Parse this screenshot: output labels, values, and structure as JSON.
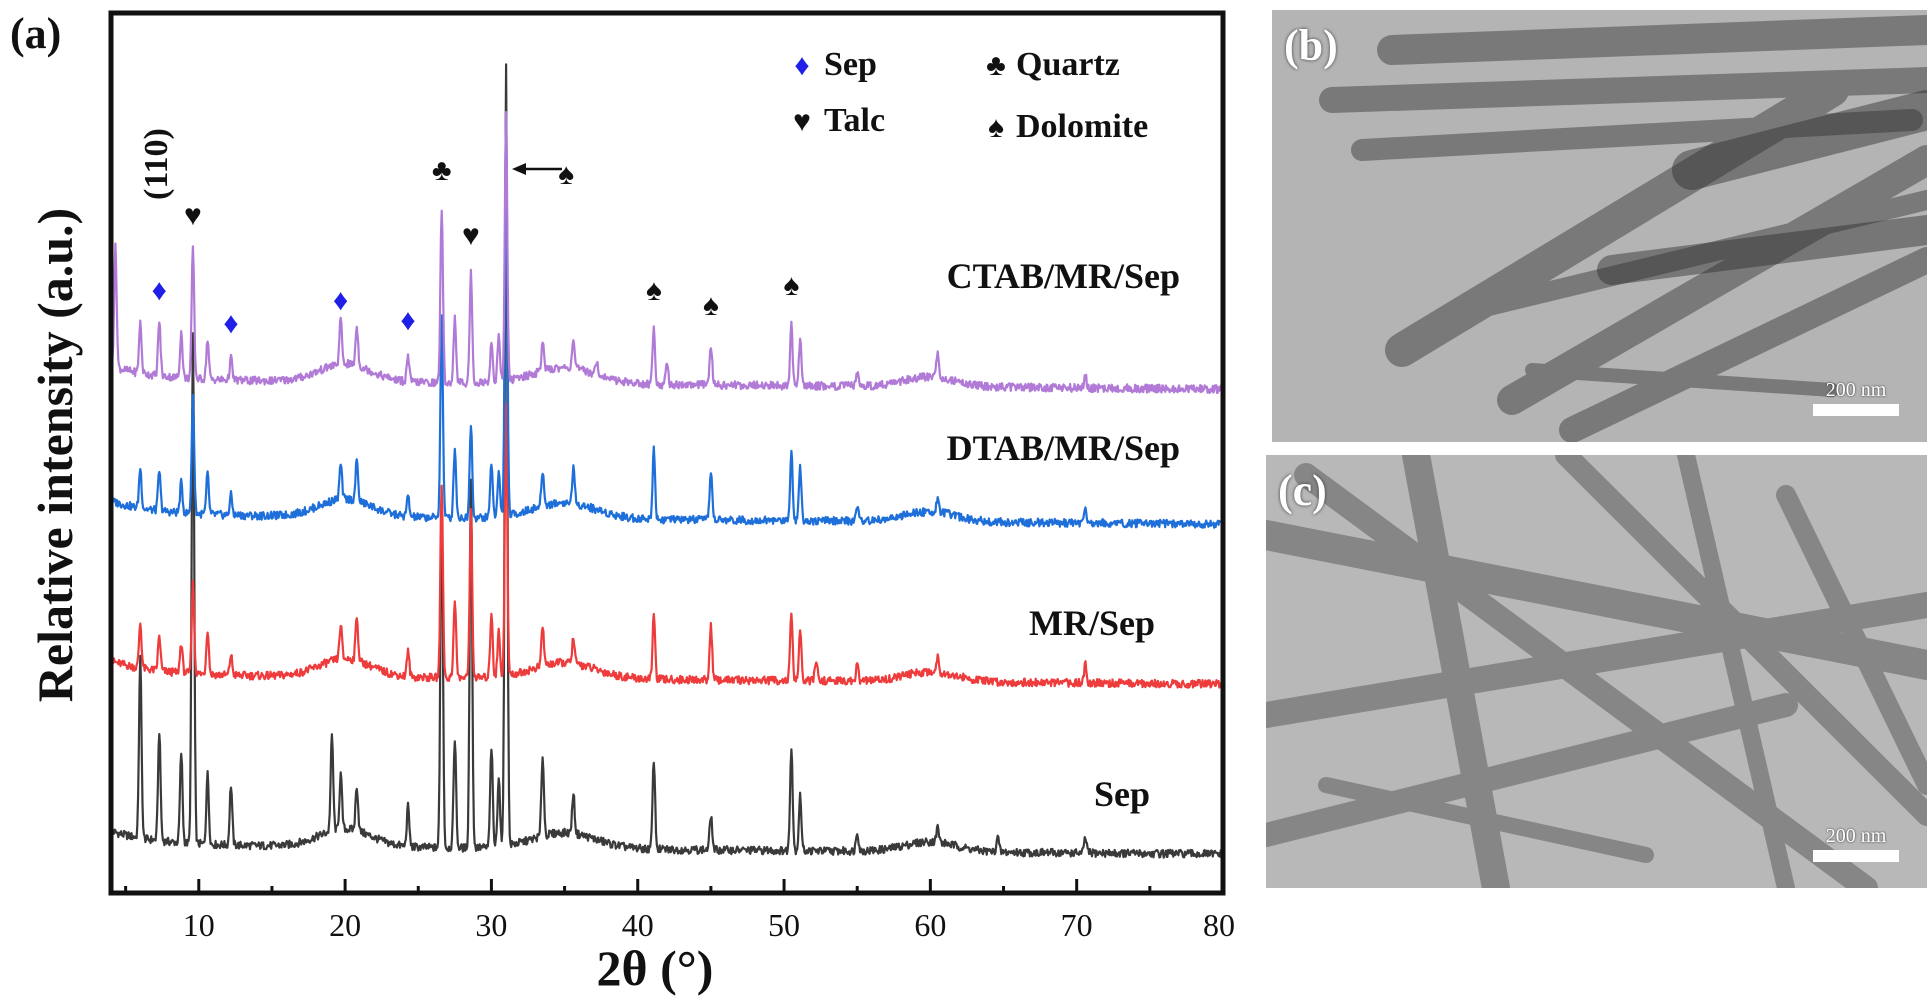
{
  "figure": {
    "panel_a_label": "(a)",
    "panel_b_label": "(b)",
    "panel_c_label": "(c)",
    "scale_b": "200 nm",
    "scale_c": "200 nm"
  },
  "chart_data": {
    "type": "line",
    "xlabel": "2θ (°)",
    "ylabel": "Relative intensity (a.u.)",
    "xlim": [
      4,
      80
    ],
    "x_ticks": [
      10,
      20,
      30,
      40,
      50,
      60,
      70,
      80
    ],
    "grid": false,
    "baseline_offsets": {
      "Sep": 0,
      "MR/Sep": 170,
      "DTAB/MR/Sep": 330,
      "CTAB/MR/Sep": 465
    },
    "series": [
      {
        "name": "Sep",
        "color": "#3a3a3a",
        "peaks": [
          [
            6.0,
            180
          ],
          [
            7.3,
            110
          ],
          [
            8.8,
            90
          ],
          [
            9.6,
            510
          ],
          [
            10.6,
            70
          ],
          [
            12.2,
            60
          ],
          [
            19.1,
            95
          ],
          [
            19.7,
            55
          ],
          [
            20.8,
            45
          ],
          [
            24.3,
            40
          ],
          [
            26.6,
            360
          ],
          [
            27.5,
            110
          ],
          [
            28.6,
            370
          ],
          [
            30.0,
            100
          ],
          [
            30.5,
            70
          ],
          [
            31.0,
            780
          ],
          [
            33.5,
            80
          ],
          [
            35.6,
            40
          ],
          [
            41.1,
            90
          ],
          [
            45.0,
            35
          ],
          [
            50.5,
            105
          ],
          [
            51.1,
            55
          ],
          [
            55.0,
            20
          ],
          [
            60.5,
            15
          ],
          [
            64.6,
            15
          ],
          [
            70.6,
            15
          ]
        ]
      },
      {
        "name": "MR/Sep",
        "color": "#ee3b3b",
        "peaks": [
          [
            6.0,
            45
          ],
          [
            7.3,
            35
          ],
          [
            8.8,
            30
          ],
          [
            9.6,
            90
          ],
          [
            10.6,
            45
          ],
          [
            12.2,
            20
          ],
          [
            19.7,
            35
          ],
          [
            20.8,
            45
          ],
          [
            24.3,
            25
          ],
          [
            26.6,
            195
          ],
          [
            27.5,
            80
          ],
          [
            28.6,
            165
          ],
          [
            30.0,
            65
          ],
          [
            30.5,
            45
          ],
          [
            31.0,
            270
          ],
          [
            33.5,
            40
          ],
          [
            35.6,
            25
          ],
          [
            41.1,
            65
          ],
          [
            45.0,
            55
          ],
          [
            50.5,
            65
          ],
          [
            51.1,
            50
          ],
          [
            52.2,
            20
          ],
          [
            55.0,
            15
          ],
          [
            60.5,
            15
          ],
          [
            70.6,
            20
          ]
        ]
      },
      {
        "name": "DTAB/MR/Sep",
        "color": "#1e6fd9",
        "peaks": [
          [
            6.0,
            40
          ],
          [
            7.3,
            40
          ],
          [
            8.8,
            30
          ],
          [
            9.6,
            115
          ],
          [
            10.6,
            40
          ],
          [
            12.2,
            20
          ],
          [
            19.7,
            35
          ],
          [
            20.8,
            40
          ],
          [
            24.3,
            20
          ],
          [
            26.6,
            200
          ],
          [
            27.5,
            70
          ],
          [
            28.6,
            95
          ],
          [
            30.0,
            55
          ],
          [
            30.5,
            45
          ],
          [
            31.0,
            395
          ],
          [
            33.5,
            35
          ],
          [
            35.6,
            35
          ],
          [
            41.1,
            70
          ],
          [
            45.0,
            50
          ],
          [
            50.5,
            70
          ],
          [
            51.1,
            55
          ],
          [
            55.0,
            15
          ],
          [
            60.5,
            15
          ],
          [
            70.6,
            15
          ]
        ]
      },
      {
        "name": "CTAB/MR/Sep",
        "color": "#b07ad6",
        "peaks": [
          [
            4.3,
            120
          ],
          [
            6.0,
            50
          ],
          [
            7.3,
            55
          ],
          [
            8.8,
            45
          ],
          [
            9.6,
            130
          ],
          [
            10.6,
            40
          ],
          [
            12.2,
            22
          ],
          [
            19.7,
            45
          ],
          [
            20.8,
            40
          ],
          [
            24.3,
            25
          ],
          [
            26.6,
            175
          ],
          [
            27.5,
            65
          ],
          [
            28.6,
            110
          ],
          [
            30.0,
            40
          ],
          [
            30.5,
            45
          ],
          [
            31.0,
            265
          ],
          [
            33.5,
            30
          ],
          [
            35.6,
            30
          ],
          [
            37.2,
            15
          ],
          [
            41.1,
            55
          ],
          [
            42.0,
            20
          ],
          [
            45.0,
            40
          ],
          [
            50.5,
            60
          ],
          [
            51.1,
            45
          ],
          [
            55.0,
            12
          ],
          [
            60.5,
            25
          ],
          [
            70.6,
            12
          ]
        ]
      }
    ],
    "annotations": {
      "sep_label": "Sep",
      "mrsep_label": "MR/Sep",
      "dtab_label": "DTAB/MR/Sep",
      "ctab_label": "CTAB/MR/Sep",
      "plane_110": "(110)",
      "legend_sep": "Sep",
      "legend_talc": "Talc",
      "legend_quartz": "Quartz",
      "legend_dolomite": "Dolomite",
      "legend_placement": "top-right",
      "marker_colors": {
        "sep": "#1f1fe8",
        "other": "#111111"
      },
      "markers": [
        {
          "kind": "sep",
          "x": 7.3
        },
        {
          "kind": "talc",
          "x": 9.6
        },
        {
          "kind": "sep",
          "x": 12.2
        },
        {
          "kind": "sep",
          "x": 19.7
        },
        {
          "kind": "sep",
          "x": 24.3
        },
        {
          "kind": "quartz",
          "x": 26.6
        },
        {
          "kind": "talc",
          "x": 28.6
        },
        {
          "kind": "dolomite",
          "x": 31.0
        },
        {
          "kind": "dolomite",
          "x": 41.1
        },
        {
          "kind": "dolomite",
          "x": 45.0
        },
        {
          "kind": "dolomite",
          "x": 50.5
        }
      ]
    }
  }
}
